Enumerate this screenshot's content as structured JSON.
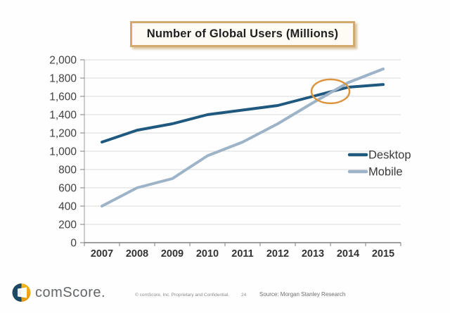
{
  "title": "Number of Global Users (Millions)",
  "chart_data": {
    "type": "line",
    "title": "Number of Global Users (Millions)",
    "categories": [
      "2007",
      "2008",
      "2009",
      "2010",
      "2011",
      "2012",
      "2013",
      "2014",
      "2015"
    ],
    "series": [
      {
        "name": "Desktop",
        "color": "#20597f",
        "values": [
          1100,
          1230,
          1300,
          1400,
          1450,
          1500,
          1600,
          1700,
          1730
        ]
      },
      {
        "name": "Mobile",
        "color": "#9db3c8",
        "values": [
          400,
          600,
          700,
          950,
          1100,
          1300,
          1530,
          1750,
          1900
        ]
      }
    ],
    "xlabel": "",
    "ylabel": "",
    "ylim": [
      0,
      2000
    ],
    "ytick_step": 200,
    "grid": true,
    "legend_position": "right-middle",
    "annotation": {
      "type": "ellipse",
      "meaning": "desktop-mobile-crossover",
      "x_year": 2013.5,
      "y_value": 1655,
      "color": "#dd9441"
    }
  },
  "styles": {
    "grid_color": "#d9d9d9",
    "axis_color": "#7f7f7f",
    "tick_label_color": "#3f3f3f",
    "legend_text_color": "#3a3a3a",
    "title_border_color": "#d4a96e"
  },
  "footer": {
    "logo_text": "comScore.",
    "copyright": "© comScore, Inc.  Proprietary and Confidential.",
    "page_number": "24",
    "source": "Source: Morgan Stanley Research"
  }
}
